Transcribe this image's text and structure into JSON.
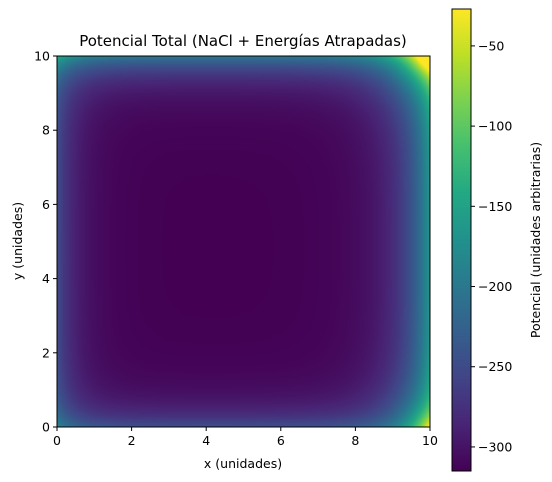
{
  "chart_data": {
    "type": "heatmap",
    "title": "Potencial Total (NaCl + Energías Atrapadas)",
    "xlabel": "x (unidades)",
    "ylabel": "y (unidades)",
    "xlim": [
      0,
      10
    ],
    "ylim": [
      0,
      10
    ],
    "xticks": [
      "0",
      "2",
      "4",
      "6",
      "8",
      "10"
    ],
    "yticks": [
      "0",
      "2",
      "4",
      "6",
      "8",
      "10"
    ],
    "colormap": "viridis",
    "colorbar": {
      "label": "Potencial (unidades arbitrarias)",
      "range": [
        -315,
        -27
      ],
      "ticks": [
        "−300",
        "−250",
        "−200",
        "−150",
        "−100",
        "−50"
      ],
      "tick_values": [
        -300,
        -250,
        -200,
        -150,
        -100,
        -50
      ]
    },
    "field": {
      "description_values": {
        "interior_value": -315,
        "edge_value_left_bottom": -250,
        "edge_value_top": -200,
        "corner_top_right": -30,
        "corner_bottom_right": -90
      }
    },
    "grid": false
  }
}
